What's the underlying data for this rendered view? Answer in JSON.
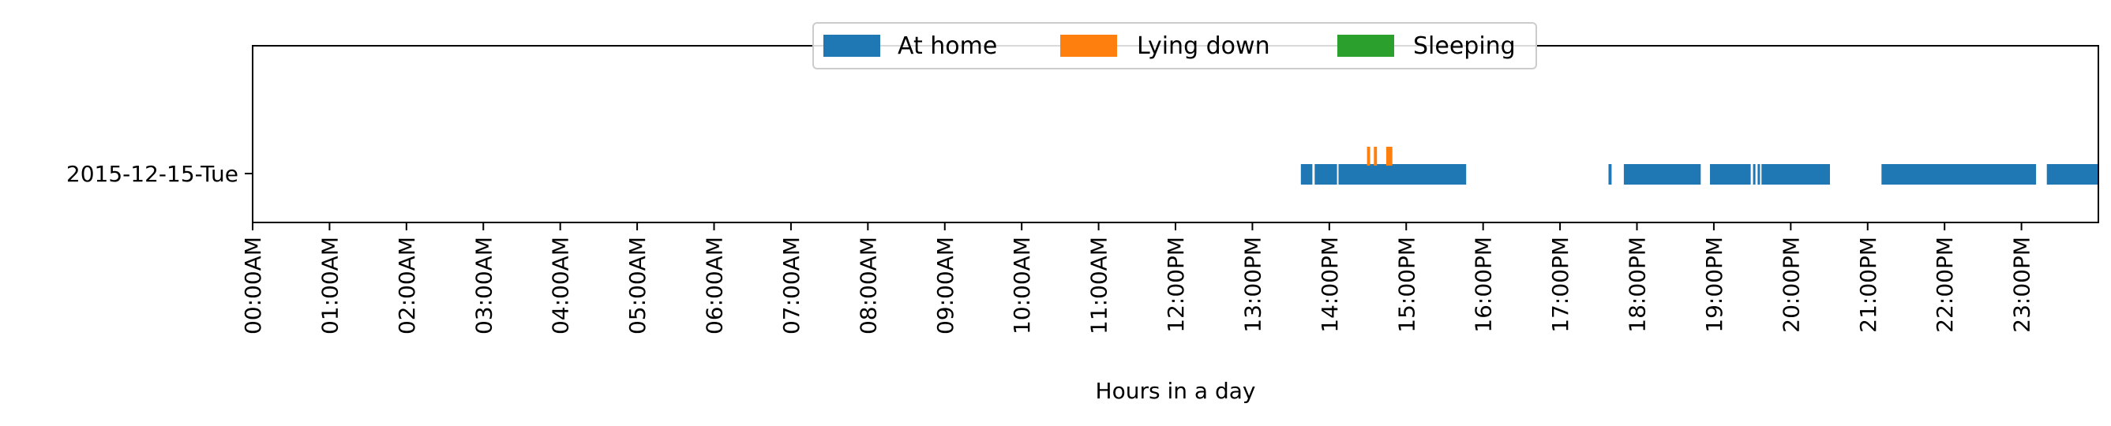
{
  "chart_data": {
    "type": "timeline",
    "title": "",
    "xlabel": "Hours in a day",
    "ylabel": "",
    "xlim": [
      0,
      24
    ],
    "grid": false,
    "legend_placement": "upper-center",
    "y_categories": [
      "2015-12-15-Tue"
    ],
    "x_tick_labels": [
      "00:00AM",
      "01:00AM",
      "02:00AM",
      "03:00AM",
      "04:00AM",
      "05:00AM",
      "06:00AM",
      "07:00AM",
      "08:00AM",
      "09:00AM",
      "10:00AM",
      "11:00AM",
      "12:00PM",
      "13:00PM",
      "14:00PM",
      "15:00PM",
      "16:00PM",
      "17:00PM",
      "18:00PM",
      "19:00PM",
      "20:00PM",
      "21:00PM",
      "22:00PM",
      "23:00PM"
    ],
    "x_tick_values": [
      0,
      1,
      2,
      3,
      4,
      5,
      6,
      7,
      8,
      9,
      10,
      11,
      12,
      13,
      14,
      15,
      16,
      17,
      18,
      19,
      20,
      21,
      22,
      23
    ],
    "series": [
      {
        "name": "At home",
        "color": "#1f77b4",
        "intervals": [
          [
            13.63,
            13.78
          ],
          [
            13.81,
            14.1
          ],
          [
            14.12,
            15.78
          ],
          [
            17.63,
            17.67
          ],
          [
            17.83,
            18.83
          ],
          [
            18.95,
            19.48
          ],
          [
            19.51,
            19.54
          ],
          [
            19.57,
            19.59
          ],
          [
            19.62,
            20.51
          ],
          [
            21.18,
            23.19
          ],
          [
            23.33,
            24.0
          ]
        ]
      },
      {
        "name": "Lying down",
        "color": "#ff7f0e",
        "intervals": [
          [
            14.49,
            14.53
          ],
          [
            14.58,
            14.62
          ],
          [
            14.74,
            14.82
          ]
        ]
      },
      {
        "name": "Sleeping",
        "color": "#2ca02c",
        "intervals": []
      }
    ]
  }
}
